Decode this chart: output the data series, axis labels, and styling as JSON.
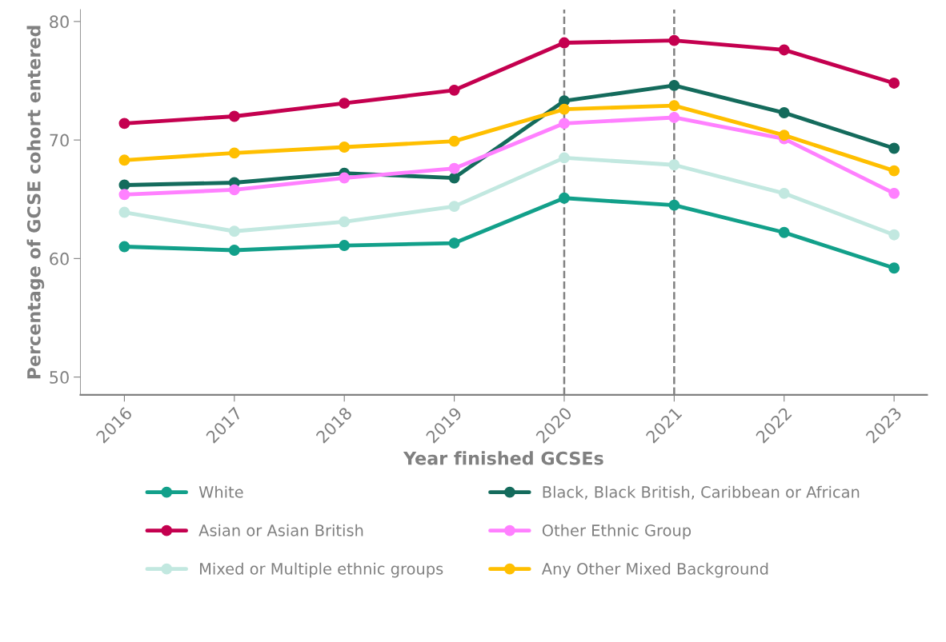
{
  "chart_data": {
    "type": "line",
    "xlabel": "Year finished GCSEs",
    "ylabel": "Percentage of GCSE cohort entered",
    "x": [
      2016,
      2017,
      2018,
      2019,
      2020,
      2021,
      2022,
      2023
    ],
    "xlim": [
      2015.6,
      2023.3
    ],
    "xticks": [
      2016,
      2017,
      2018,
      2019,
      2020,
      2021,
      2022,
      2023
    ],
    "ylim": [
      48.5,
      81
    ],
    "yticks": [
      50,
      60,
      70,
      80
    ],
    "grid": false,
    "legend": "bottom",
    "marker": "circle",
    "line_style": "solid",
    "ref_lines": [
      {
        "axis": "x",
        "value": 2020,
        "color": "#808080",
        "line_style": "dashed"
      },
      {
        "axis": "x",
        "value": 2021,
        "color": "#808080",
        "line_style": "dashed"
      }
    ],
    "series": [
      {
        "name": "White",
        "color": "#12a08a",
        "values": [
          61.0,
          60.7,
          61.1,
          61.3,
          65.1,
          64.5,
          62.2,
          59.2
        ]
      },
      {
        "name": "Black, Black British, Caribbean or African",
        "color": "#146b5c",
        "values": [
          66.2,
          66.4,
          67.2,
          66.8,
          73.3,
          74.6,
          72.3,
          69.3
        ]
      },
      {
        "name": "Asian or Asian British",
        "color": "#c4004f",
        "values": [
          71.4,
          72.0,
          73.1,
          74.2,
          78.2,
          78.4,
          77.6,
          74.8
        ]
      },
      {
        "name": "Other Ethnic Group",
        "color": "#ff80ff",
        "values": [
          65.4,
          65.8,
          66.8,
          67.6,
          71.4,
          71.9,
          70.1,
          65.5
        ]
      },
      {
        "name": "Mixed or Multiple ethnic groups",
        "color": "#c2e8e0",
        "values": [
          63.9,
          62.3,
          63.1,
          64.4,
          68.5,
          67.9,
          65.5,
          62.0
        ]
      },
      {
        "name": "Any Other Mixed Background",
        "color": "#ffbf00",
        "values": [
          68.3,
          68.9,
          69.4,
          69.9,
          72.6,
          72.9,
          70.4,
          67.4
        ]
      }
    ]
  }
}
